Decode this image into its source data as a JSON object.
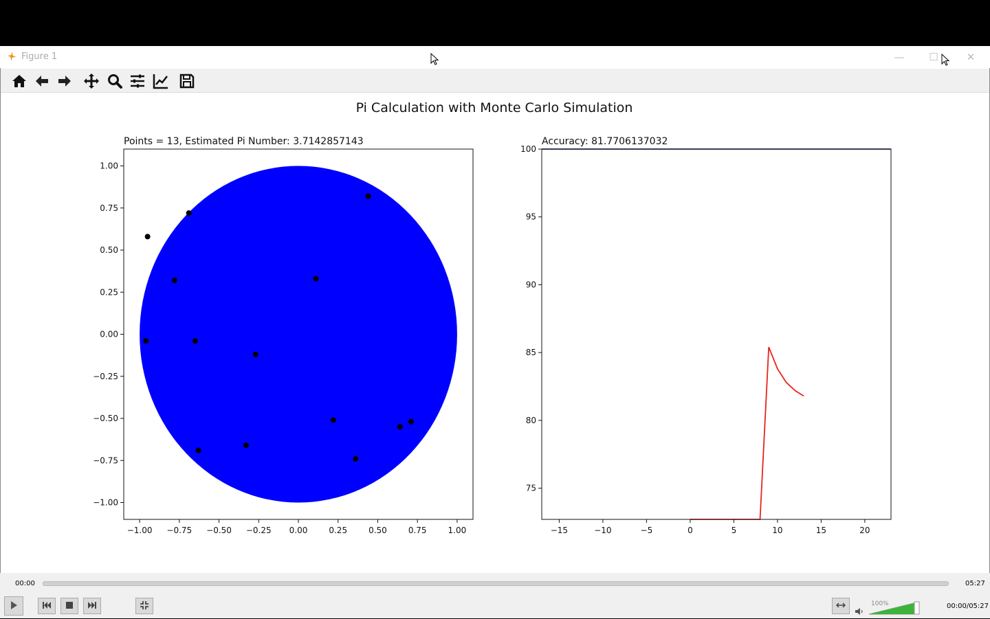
{
  "window": {
    "title": "Figure 1"
  },
  "toolbar": {
    "buttons": [
      {
        "icon": "home-icon"
      },
      {
        "icon": "back-arrow-icon"
      },
      {
        "icon": "forward-arrow-icon"
      },
      {
        "icon": "pan-icon"
      },
      {
        "icon": "zoom-icon"
      },
      {
        "icon": "subplots-icon"
      },
      {
        "icon": "edit-axis-icon"
      },
      {
        "icon": "save-icon"
      }
    ]
  },
  "figure": {
    "suptitle": "Pi Calculation with Monte Carlo Simulation"
  },
  "chart_data": [
    {
      "type": "scatter",
      "title": "Points = 13,  Estimated Pi Number: 3.7142857143",
      "xlim": [
        -1.1,
        1.1
      ],
      "ylim": [
        -1.1,
        1.1
      ],
      "xticks": [
        "−1.00",
        "−0.75",
        "−0.50",
        "−0.25",
        "0.00",
        "0.25",
        "0.50",
        "0.75",
        "1.00"
      ],
      "yticks": [
        "1.00",
        "0.75",
        "0.50",
        "0.25",
        "0.00",
        "−0.25",
        "−0.50",
        "−0.75",
        "−1.00"
      ],
      "circle": {
        "center": [
          0,
          0
        ],
        "radius": 1,
        "color": "#0000ff"
      },
      "points": [
        {
          "x": 0.44,
          "y": 0.82
        },
        {
          "x": -0.69,
          "y": 0.72
        },
        {
          "x": -0.95,
          "y": 0.58
        },
        {
          "x": -0.78,
          "y": 0.32
        },
        {
          "x": 0.11,
          "y": 0.33
        },
        {
          "x": -0.96,
          "y": -0.04
        },
        {
          "x": -0.65,
          "y": -0.04
        },
        {
          "x": -0.27,
          "y": -0.12
        },
        {
          "x": 0.22,
          "y": -0.51
        },
        {
          "x": 0.64,
          "y": -0.55
        },
        {
          "x": 0.71,
          "y": -0.52
        },
        {
          "x": -0.63,
          "y": -0.69
        },
        {
          "x": -0.33,
          "y": -0.66
        },
        {
          "x": 0.36,
          "y": -0.74
        }
      ],
      "point_color": "#000000"
    },
    {
      "type": "line",
      "title": "Accuracy: 81.7706137032",
      "xlim": [
        -17,
        23
      ],
      "ylim": [
        72.7,
        100
      ],
      "xticks": [
        "−15",
        "−10",
        "−5",
        "0",
        "5",
        "10",
        "15",
        "20"
      ],
      "xtick_values": [
        -15,
        -10,
        -5,
        0,
        5,
        10,
        15,
        20
      ],
      "yticks": [
        "100",
        "95",
        "90",
        "85",
        "80",
        "75"
      ],
      "ytick_values": [
        100,
        95,
        90,
        85,
        80,
        75
      ],
      "series": [
        {
          "color": "#e8231b",
          "x": [
            0,
            8,
            9,
            10,
            11,
            12,
            13
          ],
          "y": [
            72.7,
            72.7,
            85.4,
            83.8,
            82.8,
            82.2,
            81.8
          ]
        },
        {
          "color": "#1f3b6b",
          "x": [
            -17,
            23
          ],
          "y": [
            100,
            100
          ]
        }
      ]
    }
  ],
  "player": {
    "time_current": "00:00",
    "time_end": "05:27",
    "time_readout": "00:00/05:27",
    "volume": "100%",
    "progress": 0.0,
    "buttons": [
      {
        "icon": "play-icon"
      },
      {
        "icon": "previous-icon"
      },
      {
        "icon": "stop-icon"
      },
      {
        "icon": "next-icon"
      },
      {
        "icon": "fullscreen-icon"
      },
      {
        "icon": "loop-icon"
      },
      {
        "icon": "speaker-icon"
      }
    ],
    "accent_color": "#3cb43c"
  }
}
